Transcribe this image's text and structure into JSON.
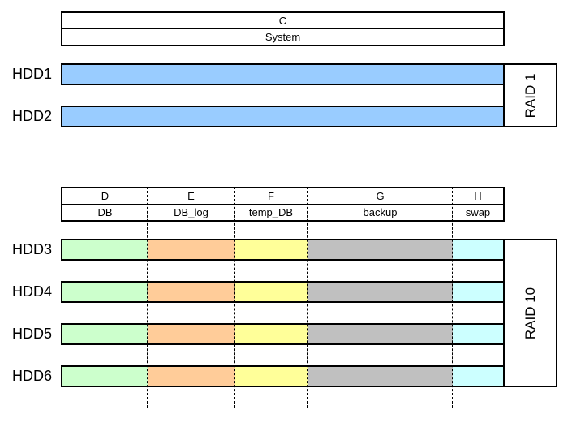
{
  "top_group": {
    "header": {
      "letter": "C",
      "name": "System"
    },
    "drives": [
      {
        "label": "HDD1",
        "color": "#99ccff"
      },
      {
        "label": "HDD2",
        "color": "#99ccff"
      }
    ],
    "raid_label": "RAID 1"
  },
  "bottom_group": {
    "partitions": [
      {
        "letter": "D",
        "name": "DB",
        "color": "#ccffcc"
      },
      {
        "letter": "E",
        "name": "DB_log",
        "color": "#ffcc99"
      },
      {
        "letter": "F",
        "name": "temp_DB",
        "color": "#ffff99"
      },
      {
        "letter": "G",
        "name": "backup",
        "color": "#c0c0c0"
      },
      {
        "letter": "H",
        "name": "swap",
        "color": "#ccffff"
      }
    ],
    "drives": [
      {
        "label": "HDD3"
      },
      {
        "label": "HDD4"
      },
      {
        "label": "HDD5"
      },
      {
        "label": "HDD6"
      }
    ],
    "raid_label": "RAID 10"
  }
}
